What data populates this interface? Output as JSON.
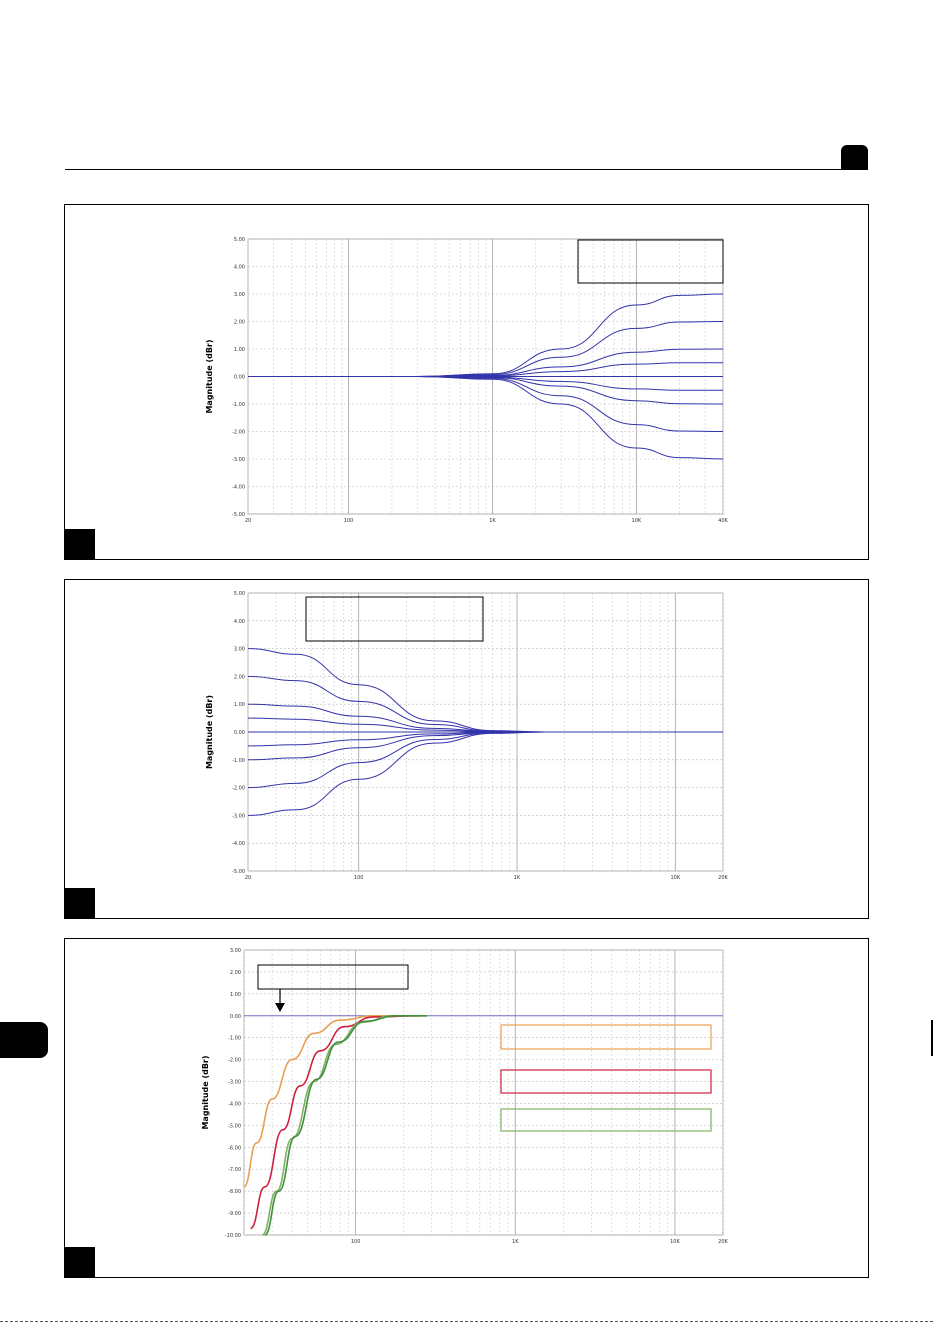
{
  "page": {
    "header_tab_color": "#000000"
  },
  "chart_data": [
    {
      "type": "line",
      "ylabel": "Magnitude (dBr)",
      "x_scale": "log",
      "xlim": [
        20,
        40000
      ],
      "ylim": [
        -5,
        5
      ],
      "xticks": [
        "20",
        "100",
        "1K",
        "10K",
        "40K"
      ],
      "yticks": [
        "5.00",
        "4.00",
        "3.00",
        "2.00",
        "1.00",
        "0.00",
        "-1.00",
        "-2.00",
        "-3.00",
        "-4.00",
        "-5.00"
      ],
      "grid": true,
      "legend_box": "top-right",
      "curve_color": "#3333aa",
      "shelf": "high",
      "series": [
        {
          "values": [
            [
              20,
              0
            ],
            [
              300,
              0
            ],
            [
              1000,
              0.1
            ],
            [
              3000,
              1.0
            ],
            [
              10000,
              2.6
            ],
            [
              20000,
              2.95
            ],
            [
              40000,
              3.0
            ]
          ]
        },
        {
          "values": [
            [
              20,
              0
            ],
            [
              300,
              0
            ],
            [
              1000,
              0.07
            ],
            [
              3000,
              0.7
            ],
            [
              10000,
              1.75
            ],
            [
              20000,
              1.98
            ],
            [
              40000,
              2.0
            ]
          ]
        },
        {
          "values": [
            [
              20,
              0
            ],
            [
              300,
              0
            ],
            [
              1000,
              0.04
            ],
            [
              3000,
              0.35
            ],
            [
              10000,
              0.88
            ],
            [
              20000,
              0.99
            ],
            [
              40000,
              1.0
            ]
          ]
        },
        {
          "values": [
            [
              20,
              0
            ],
            [
              300,
              0
            ],
            [
              1000,
              0.02
            ],
            [
              3000,
              0.18
            ],
            [
              10000,
              0.45
            ],
            [
              20000,
              0.5
            ],
            [
              40000,
              0.5
            ]
          ]
        },
        {
          "values": [
            [
              20,
              0
            ],
            [
              40000,
              0
            ]
          ]
        },
        {
          "values": [
            [
              20,
              0
            ],
            [
              300,
              0
            ],
            [
              1000,
              -0.02
            ],
            [
              3000,
              -0.18
            ],
            [
              10000,
              -0.45
            ],
            [
              20000,
              -0.5
            ],
            [
              40000,
              -0.5
            ]
          ]
        },
        {
          "values": [
            [
              20,
              0
            ],
            [
              300,
              0
            ],
            [
              1000,
              -0.04
            ],
            [
              3000,
              -0.35
            ],
            [
              10000,
              -0.88
            ],
            [
              20000,
              -0.99
            ],
            [
              40000,
              -1.0
            ]
          ]
        },
        {
          "values": [
            [
              20,
              0
            ],
            [
              300,
              0
            ],
            [
              1000,
              -0.07
            ],
            [
              3000,
              -0.7
            ],
            [
              10000,
              -1.75
            ],
            [
              20000,
              -1.98
            ],
            [
              40000,
              -2.0
            ]
          ]
        },
        {
          "values": [
            [
              20,
              0
            ],
            [
              300,
              0
            ],
            [
              1000,
              -0.1
            ],
            [
              3000,
              -1.0
            ],
            [
              10000,
              -2.6
            ],
            [
              20000,
              -2.95
            ],
            [
              40000,
              -3.0
            ]
          ]
        }
      ]
    },
    {
      "type": "line",
      "ylabel": "Magnitude (dBr)",
      "x_scale": "log",
      "xlim": [
        20,
        20000
      ],
      "ylim": [
        -5,
        5
      ],
      "xticks": [
        "20",
        "100",
        "1K",
        "10K",
        "20K"
      ],
      "yticks": [
        "5.00",
        "4.00",
        "3.00",
        "2.00",
        "1.00",
        "0.00",
        "-1.00",
        "-2.00",
        "-3.00",
        "-4.00",
        "-5.00"
      ],
      "grid": true,
      "legend_box": "top-left",
      "curve_color": "#3333aa",
      "shelf": "low",
      "series": [
        {
          "values": [
            [
              20,
              3.0
            ],
            [
              40,
              2.8
            ],
            [
              100,
              1.7
            ],
            [
              300,
              0.4
            ],
            [
              700,
              0.05
            ],
            [
              1500,
              0
            ],
            [
              20000,
              0
            ]
          ]
        },
        {
          "values": [
            [
              20,
              2.0
            ],
            [
              40,
              1.85
            ],
            [
              100,
              1.1
            ],
            [
              300,
              0.27
            ],
            [
              700,
              0.03
            ],
            [
              1500,
              0
            ],
            [
              20000,
              0
            ]
          ]
        },
        {
          "values": [
            [
              20,
              1.0
            ],
            [
              40,
              0.93
            ],
            [
              100,
              0.57
            ],
            [
              300,
              0.13
            ],
            [
              700,
              0.02
            ],
            [
              1500,
              0
            ],
            [
              20000,
              0
            ]
          ]
        },
        {
          "values": [
            [
              20,
              0.5
            ],
            [
              40,
              0.46
            ],
            [
              100,
              0.28
            ],
            [
              300,
              0.07
            ],
            [
              700,
              0.01
            ],
            [
              1500,
              0
            ],
            [
              20000,
              0
            ]
          ]
        },
        {
          "values": [
            [
              20,
              0
            ],
            [
              20000,
              0
            ]
          ]
        },
        {
          "values": [
            [
              20,
              -0.5
            ],
            [
              40,
              -0.46
            ],
            [
              100,
              -0.28
            ],
            [
              300,
              -0.07
            ],
            [
              700,
              -0.01
            ],
            [
              1500,
              0
            ],
            [
              20000,
              0
            ]
          ]
        },
        {
          "values": [
            [
              20,
              -1.0
            ],
            [
              40,
              -0.93
            ],
            [
              100,
              -0.57
            ],
            [
              300,
              -0.13
            ],
            [
              700,
              -0.02
            ],
            [
              1500,
              0
            ],
            [
              20000,
              0
            ]
          ]
        },
        {
          "values": [
            [
              20,
              -2.0
            ],
            [
              40,
              -1.85
            ],
            [
              100,
              -1.1
            ],
            [
              300,
              -0.27
            ],
            [
              700,
              -0.03
            ],
            [
              1500,
              0
            ],
            [
              20000,
              0
            ]
          ]
        },
        {
          "values": [
            [
              20,
              -3.0
            ],
            [
              40,
              -2.8
            ],
            [
              100,
              -1.7
            ],
            [
              300,
              -0.4
            ],
            [
              700,
              -0.05
            ],
            [
              1500,
              0
            ],
            [
              20000,
              0
            ]
          ]
        }
      ]
    },
    {
      "type": "line",
      "ylabel": "Magnitude (dBr)",
      "x_scale": "log",
      "xlim": [
        20,
        20000
      ],
      "ylim": [
        -10,
        3
      ],
      "xticks": [
        "100",
        "1K",
        "10K",
        "20K"
      ],
      "yticks": [
        "3.00",
        "2.00",
        "1.00",
        "0.00",
        "-1.00",
        "-2.00",
        "-3.00",
        "-4.00",
        "-5.00",
        "-6.00",
        "-7.00",
        "-8.00",
        "-9.00",
        "-10.00"
      ],
      "grid": true,
      "annotation_box": "arrow pointing to 0 dB line",
      "legend_colors": [
        "#e8a050",
        "#d02040",
        "#80b060"
      ],
      "series": [
        {
          "color": "#7070c0",
          "values": [
            [
              20,
              0
            ],
            [
              20000,
              0
            ]
          ]
        },
        {
          "color": "#e8a050",
          "values": [
            [
              20,
              -7.8
            ],
            [
              24,
              -5.8
            ],
            [
              30,
              -3.8
            ],
            [
              40,
              -2.0
            ],
            [
              55,
              -0.8
            ],
            [
              80,
              -0.2
            ],
            [
              130,
              0
            ],
            [
              200,
              0
            ]
          ]
        },
        {
          "color": "#d02040",
          "values": [
            [
              22,
              -9.7
            ],
            [
              27,
              -7.8
            ],
            [
              35,
              -5.2
            ],
            [
              45,
              -3.2
            ],
            [
              60,
              -1.6
            ],
            [
              85,
              -0.5
            ],
            [
              130,
              -0.05
            ],
            [
              250,
              0
            ]
          ]
        },
        {
          "color": "#80b060",
          "values": [
            [
              26,
              -10
            ],
            [
              32,
              -8.0
            ],
            [
              40,
              -5.6
            ],
            [
              55,
              -3.0
            ],
            [
              75,
              -1.3
            ],
            [
              110,
              -0.3
            ],
            [
              170,
              0
            ],
            [
              280,
              0
            ]
          ]
        },
        {
          "color": "#409040",
          "values": [
            [
              27,
              -10
            ],
            [
              33,
              -8.0
            ],
            [
              42,
              -5.5
            ],
            [
              57,
              -2.9
            ],
            [
              78,
              -1.2
            ],
            [
              115,
              -0.25
            ],
            [
              180,
              0
            ],
            [
              280,
              0
            ]
          ]
        }
      ]
    }
  ]
}
